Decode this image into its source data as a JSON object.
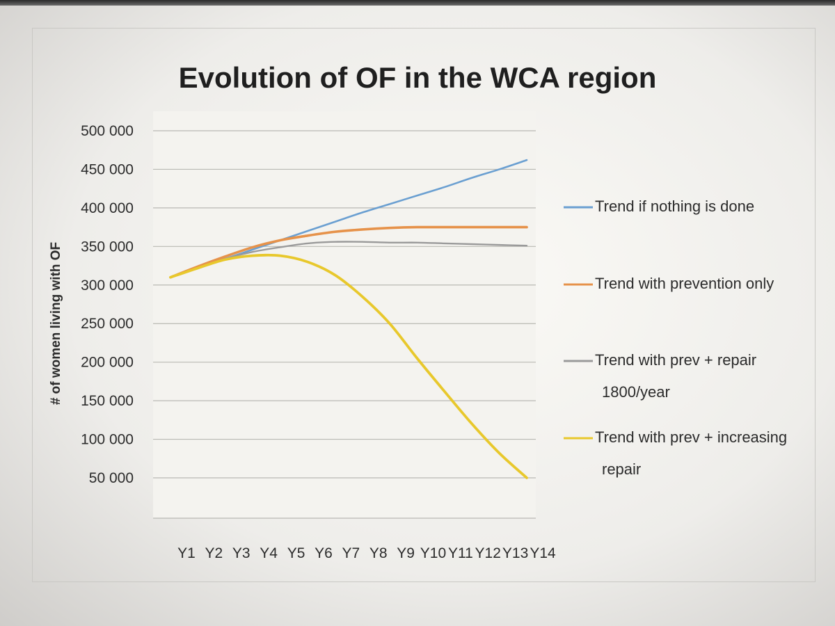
{
  "chart_data": {
    "type": "line",
    "title": "Evolution of OF in the WCA region",
    "xlabel": "",
    "ylabel": "# of women living with OF",
    "categories": [
      "Y1",
      "Y2",
      "Y3",
      "Y4",
      "Y5",
      "Y6",
      "Y7",
      "Y8",
      "Y9",
      "Y10",
      "Y11",
      "Y12",
      "Y13",
      "Y14"
    ],
    "yticks": [
      "500 000",
      "450 000",
      "400 000",
      "350 000",
      "300 000",
      "250 000",
      "200 000",
      "150 000",
      "100 000",
      "50 000"
    ],
    "ylim": [
      0,
      500000
    ],
    "grid": true,
    "legend_position": "right",
    "series": [
      {
        "name": "Trend if nothing is done",
        "color": "#6a9fd1",
        "values": [
          310000,
          322000,
          334000,
          346000,
          358000,
          370000,
          382000,
          394000,
          405000,
          416000,
          427000,
          439000,
          450000,
          462000
        ]
      },
      {
        "name": "Trend with prevention only",
        "color": "#e6924a",
        "values": [
          310000,
          324000,
          337000,
          349000,
          358000,
          364000,
          369000,
          372000,
          374000,
          375000,
          375000,
          375000,
          375000,
          375000
        ]
      },
      {
        "name": "Trend with prev + repair 1800/year",
        "color": "#9a9a9a",
        "values": [
          310000,
          322000,
          334000,
          343000,
          349000,
          354000,
          356000,
          356000,
          355000,
          355000,
          354000,
          353000,
          352000,
          351000
        ]
      },
      {
        "name": "Trend with prev + increasing repair",
        "color": "#e8c82c",
        "values": [
          310000,
          322000,
          333000,
          338000,
          338000,
          330000,
          313000,
          285000,
          250000,
          205000,
          162000,
          120000,
          82000,
          50000
        ]
      }
    ],
    "legend": [
      {
        "lines": [
          "Trend if nothing is done"
        ],
        "color": "#6a9fd1"
      },
      {
        "lines": [
          "Trend with prevention only"
        ],
        "color": "#e6924a"
      },
      {
        "lines": [
          "Trend with prev + repair",
          "1800/year"
        ],
        "color": "#9a9a9a"
      },
      {
        "lines": [
          "Trend with prev + increasing",
          "repair"
        ],
        "color": "#e8c82c"
      }
    ]
  }
}
